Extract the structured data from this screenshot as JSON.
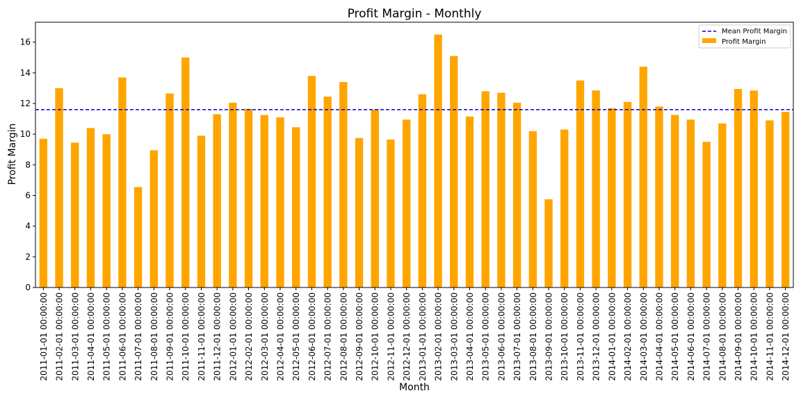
{
  "chart_data": {
    "type": "bar",
    "title": "Profit Margin - Monthly",
    "xlabel": "Month",
    "ylabel": "Profit Margin",
    "ylim": [
      0,
      17.3
    ],
    "yticks": [
      0,
      2,
      4,
      6,
      8,
      10,
      12,
      14,
      16
    ],
    "grid": false,
    "legend_position": "top-right",
    "categories": [
      "2011-01-01 00:00:00",
      "2011-02-01 00:00:00",
      "2011-03-01 00:00:00",
      "2011-04-01 00:00:00",
      "2011-05-01 00:00:00",
      "2011-06-01 00:00:00",
      "2011-07-01 00:00:00",
      "2011-08-01 00:00:00",
      "2011-09-01 00:00:00",
      "2011-10-01 00:00:00",
      "2011-11-01 00:00:00",
      "2011-12-01 00:00:00",
      "2012-01-01 00:00:00",
      "2012-02-01 00:00:00",
      "2012-03-01 00:00:00",
      "2012-04-01 00:00:00",
      "2012-05-01 00:00:00",
      "2012-06-01 00:00:00",
      "2012-07-01 00:00:00",
      "2012-08-01 00:00:00",
      "2012-09-01 00:00:00",
      "2012-10-01 00:00:00",
      "2012-11-01 00:00:00",
      "2012-12-01 00:00:00",
      "2013-01-01 00:00:00",
      "2013-02-01 00:00:00",
      "2013-03-01 00:00:00",
      "2013-04-01 00:00:00",
      "2013-05-01 00:00:00",
      "2013-06-01 00:00:00",
      "2013-07-01 00:00:00",
      "2013-08-01 00:00:00",
      "2013-09-01 00:00:00",
      "2013-10-01 00:00:00",
      "2013-11-01 00:00:00",
      "2013-12-01 00:00:00",
      "2014-01-01 00:00:00",
      "2014-02-01 00:00:00",
      "2014-03-01 00:00:00",
      "2014-04-01 00:00:00",
      "2014-05-01 00:00:00",
      "2014-06-01 00:00:00",
      "2014-07-01 00:00:00",
      "2014-08-01 00:00:00",
      "2014-09-01 00:00:00",
      "2014-10-01 00:00:00",
      "2014-11-01 00:00:00",
      "2014-12-01 00:00:00"
    ],
    "series": [
      {
        "name": "Profit Margin",
        "color": "#ffa500",
        "values": [
          9.7,
          13.0,
          9.45,
          10.4,
          10.0,
          13.7,
          6.55,
          8.95,
          12.65,
          15.0,
          9.9,
          11.3,
          12.05,
          11.65,
          11.25,
          11.1,
          10.45,
          13.8,
          12.45,
          13.4,
          9.75,
          11.6,
          9.65,
          10.95,
          12.6,
          16.5,
          15.1,
          11.15,
          12.8,
          12.7,
          12.05,
          10.2,
          5.75,
          10.3,
          13.5,
          12.85,
          11.7,
          12.1,
          14.4,
          11.8,
          11.25,
          10.95,
          9.5,
          10.7,
          12.95,
          12.85,
          10.9,
          11.45
        ]
      }
    ],
    "reference_line": {
      "name": "Mean Profit Margin",
      "value": 11.6,
      "color": "#0000cc",
      "style": "dashed"
    }
  }
}
